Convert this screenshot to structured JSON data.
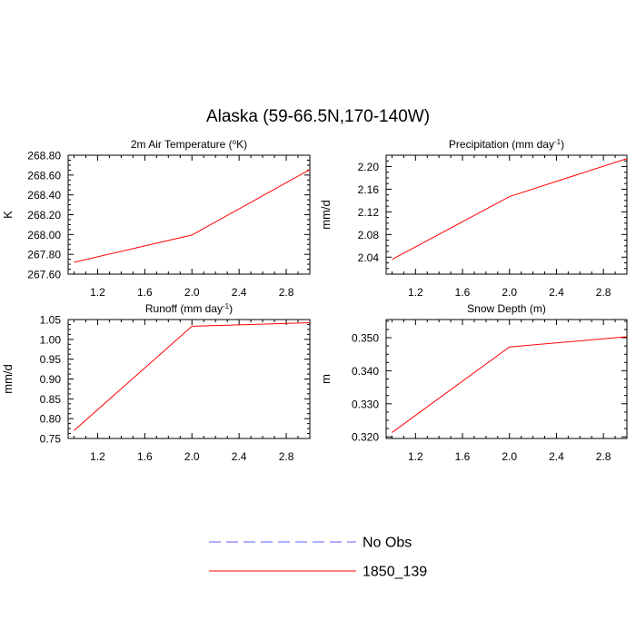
{
  "figure": {
    "title": "Alaska (59-66.5N,170-140W)"
  },
  "chart_data": [
    {
      "type": "line",
      "title_main": "2m Air Temperature (",
      "title_sup": "o",
      "title_tail": "K)",
      "ylabel": "K",
      "xlim": [
        0.95,
        3.0
      ],
      "ylim": [
        267.6,
        268.8
      ],
      "xticks": [
        1.2,
        1.6,
        2.0,
        2.4,
        2.8
      ],
      "xtick_labels": [
        "1.2",
        "1.6",
        "2.0",
        "2.4",
        "2.8"
      ],
      "yticks": [
        267.6,
        267.8,
        268.0,
        268.2,
        268.4,
        268.6,
        268.8
      ],
      "ytick_labels": [
        "267.60",
        "267.80",
        "268.00",
        "268.20",
        "268.40",
        "268.60",
        "268.80"
      ],
      "series": [
        {
          "name": "1850_139",
          "color": "#ff0000",
          "x": [
            1.0,
            2.0,
            3.0
          ],
          "y": [
            267.72,
            267.995,
            268.655
          ]
        }
      ]
    },
    {
      "type": "line",
      "title_main": "Precipitation (mm day",
      "title_sup": "-1",
      "title_tail": ")",
      "ylabel": "mm/d",
      "xlim": [
        0.95,
        3.0
      ],
      "ylim": [
        2.01,
        2.22
      ],
      "xticks": [
        1.2,
        1.6,
        2.0,
        2.4,
        2.8
      ],
      "xtick_labels": [
        "1.2",
        "1.6",
        "2.0",
        "2.4",
        "2.8"
      ],
      "yticks": [
        2.04,
        2.08,
        2.12,
        2.16,
        2.2
      ],
      "ytick_labels": [
        "2.04",
        "2.08",
        "2.12",
        "2.16",
        "2.20"
      ],
      "series": [
        {
          "name": "1850_139",
          "color": "#ff0000",
          "x": [
            1.0,
            2.0,
            3.0
          ],
          "y": [
            2.036,
            2.147,
            2.214
          ]
        }
      ]
    },
    {
      "type": "line",
      "title_main": "Runoff (mm day",
      "title_sup": "-1",
      "title_tail": ")",
      "ylabel": "mm/d",
      "xlim": [
        0.95,
        3.0
      ],
      "ylim": [
        0.75,
        1.05
      ],
      "xticks": [
        1.2,
        1.6,
        2.0,
        2.4,
        2.8
      ],
      "xtick_labels": [
        "1.2",
        "1.6",
        "2.0",
        "2.4",
        "2.8"
      ],
      "yticks": [
        0.75,
        0.8,
        0.85,
        0.9,
        0.95,
        1.0,
        1.05
      ],
      "ytick_labels": [
        "0.75",
        "0.80",
        "0.85",
        "0.90",
        "0.95",
        "1.00",
        "1.05"
      ],
      "series": [
        {
          "name": "1850_139",
          "color": "#ff0000",
          "x": [
            1.0,
            2.0,
            3.0
          ],
          "y": [
            0.77,
            1.033,
            1.042
          ]
        }
      ]
    },
    {
      "type": "line",
      "title_main": "Snow Depth (m)",
      "title_sup": "",
      "title_tail": "",
      "ylabel": "m",
      "xlim": [
        0.95,
        3.0
      ],
      "ylim": [
        0.3195,
        0.3555
      ],
      "xticks": [
        1.2,
        1.6,
        2.0,
        2.4,
        2.8
      ],
      "xtick_labels": [
        "1.2",
        "1.6",
        "2.0",
        "2.4",
        "2.8"
      ],
      "yticks": [
        0.32,
        0.33,
        0.34,
        0.35
      ],
      "ytick_labels": [
        "0.320",
        "0.330",
        "0.340",
        "0.350"
      ],
      "series": [
        {
          "name": "1850_139",
          "color": "#ff0000",
          "x": [
            1.0,
            2.0,
            3.0
          ],
          "y": [
            0.3213,
            0.3472,
            0.3503
          ]
        }
      ]
    }
  ],
  "legend": {
    "placement": "bottom-center",
    "entries": [
      {
        "label": "No Obs",
        "color": "#6060ff",
        "style": "dashed"
      },
      {
        "label": "1850_139",
        "color": "#ff0000",
        "style": "solid"
      }
    ]
  }
}
